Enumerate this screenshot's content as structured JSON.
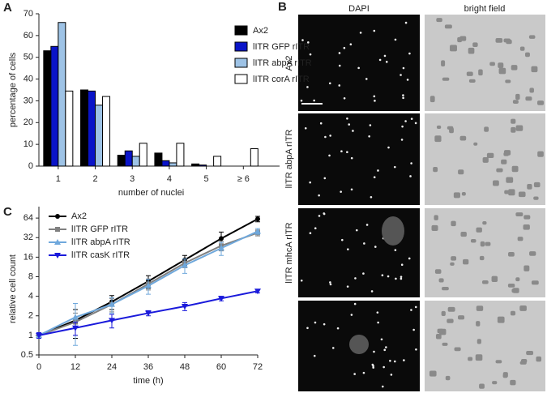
{
  "panel_labels": [
    "A",
    "B",
    "C"
  ],
  "chart_data": [
    {
      "type": "bar",
      "ylabel": "percentage of cells",
      "xlabel": "number of nuclei",
      "categories": [
        "1",
        "2",
        "3",
        "4",
        "5",
        "≥ 6"
      ],
      "series": [
        {
          "name": "Ax2",
          "color": "#000000",
          "values": [
            53,
            35,
            5,
            6,
            1,
            0
          ]
        },
        {
          "name": "lITR GFP rITR",
          "color": "#0a14c8",
          "values": [
            55,
            34.5,
            7,
            2.5,
            0.5,
            0
          ]
        },
        {
          "name": "lITR abpA rITR",
          "color": "#9ec3e6",
          "values": [
            66,
            28,
            4.5,
            1.5,
            0,
            0
          ]
        },
        {
          "name": "lITR corA rITR",
          "color": "#ffffff",
          "values": [
            34.5,
            32,
            10.5,
            10.5,
            4.5,
            8
          ]
        }
      ],
      "ylim": [
        0,
        70
      ],
      "yticks": [
        0,
        10,
        20,
        30,
        40,
        50,
        60,
        70
      ],
      "legend": "upper right"
    },
    {
      "type": "line",
      "ylabel": "relative cell count",
      "xlabel": "time (h)",
      "yscale": "log2",
      "x": [
        0,
        12,
        24,
        36,
        48,
        60,
        72
      ],
      "series": [
        {
          "name": "Ax2",
          "color": "#000000",
          "marker": "circle",
          "values": [
            1,
            1.7,
            3.3,
            6.8,
            14.5,
            31,
            62
          ],
          "errors": [
            0.05,
            0.8,
            0.8,
            1.5,
            2.5,
            8,
            6
          ]
        },
        {
          "name": "lITR GFP rITR",
          "color": "#808080",
          "marker": "square",
          "values": [
            1,
            1.6,
            3.0,
            6.2,
            13,
            24,
            38
          ],
          "errors": [
            0.1,
            0.6,
            0.7,
            1.2,
            2,
            4,
            4
          ]
        },
        {
          "name": "lITR abpA rITR",
          "color": "#6fa8dc",
          "marker": "triangle-up",
          "values": [
            1,
            1.9,
            3.0,
            5.8,
            12,
            22,
            40
          ],
          "errors": [
            0.1,
            1.2,
            0.8,
            1.5,
            3,
            5,
            4
          ]
        },
        {
          "name": "lITR casK rITR",
          "color": "#1a1adb",
          "marker": "triangle-down",
          "values": [
            1,
            1.3,
            1.7,
            2.2,
            2.8,
            3.7,
            4.8
          ],
          "errors": [
            0.1,
            0.3,
            0.4,
            0.2,
            0.4,
            0.3,
            0.3
          ]
        }
      ],
      "xlim": [
        0,
        72
      ],
      "xticks": [
        0,
        12,
        24,
        36,
        48,
        60,
        72
      ],
      "ylim": [
        0.5,
        96
      ],
      "yticks": [
        0.5,
        1,
        2,
        4,
        8,
        16,
        32,
        64
      ],
      "legend": "upper left"
    }
  ],
  "panel_b": {
    "column_labels": [
      "DAPI",
      "bright field"
    ],
    "row_labels": [
      "Ax2",
      "lITR abpA rITR",
      "lITR mhcA rITR"
    ]
  }
}
